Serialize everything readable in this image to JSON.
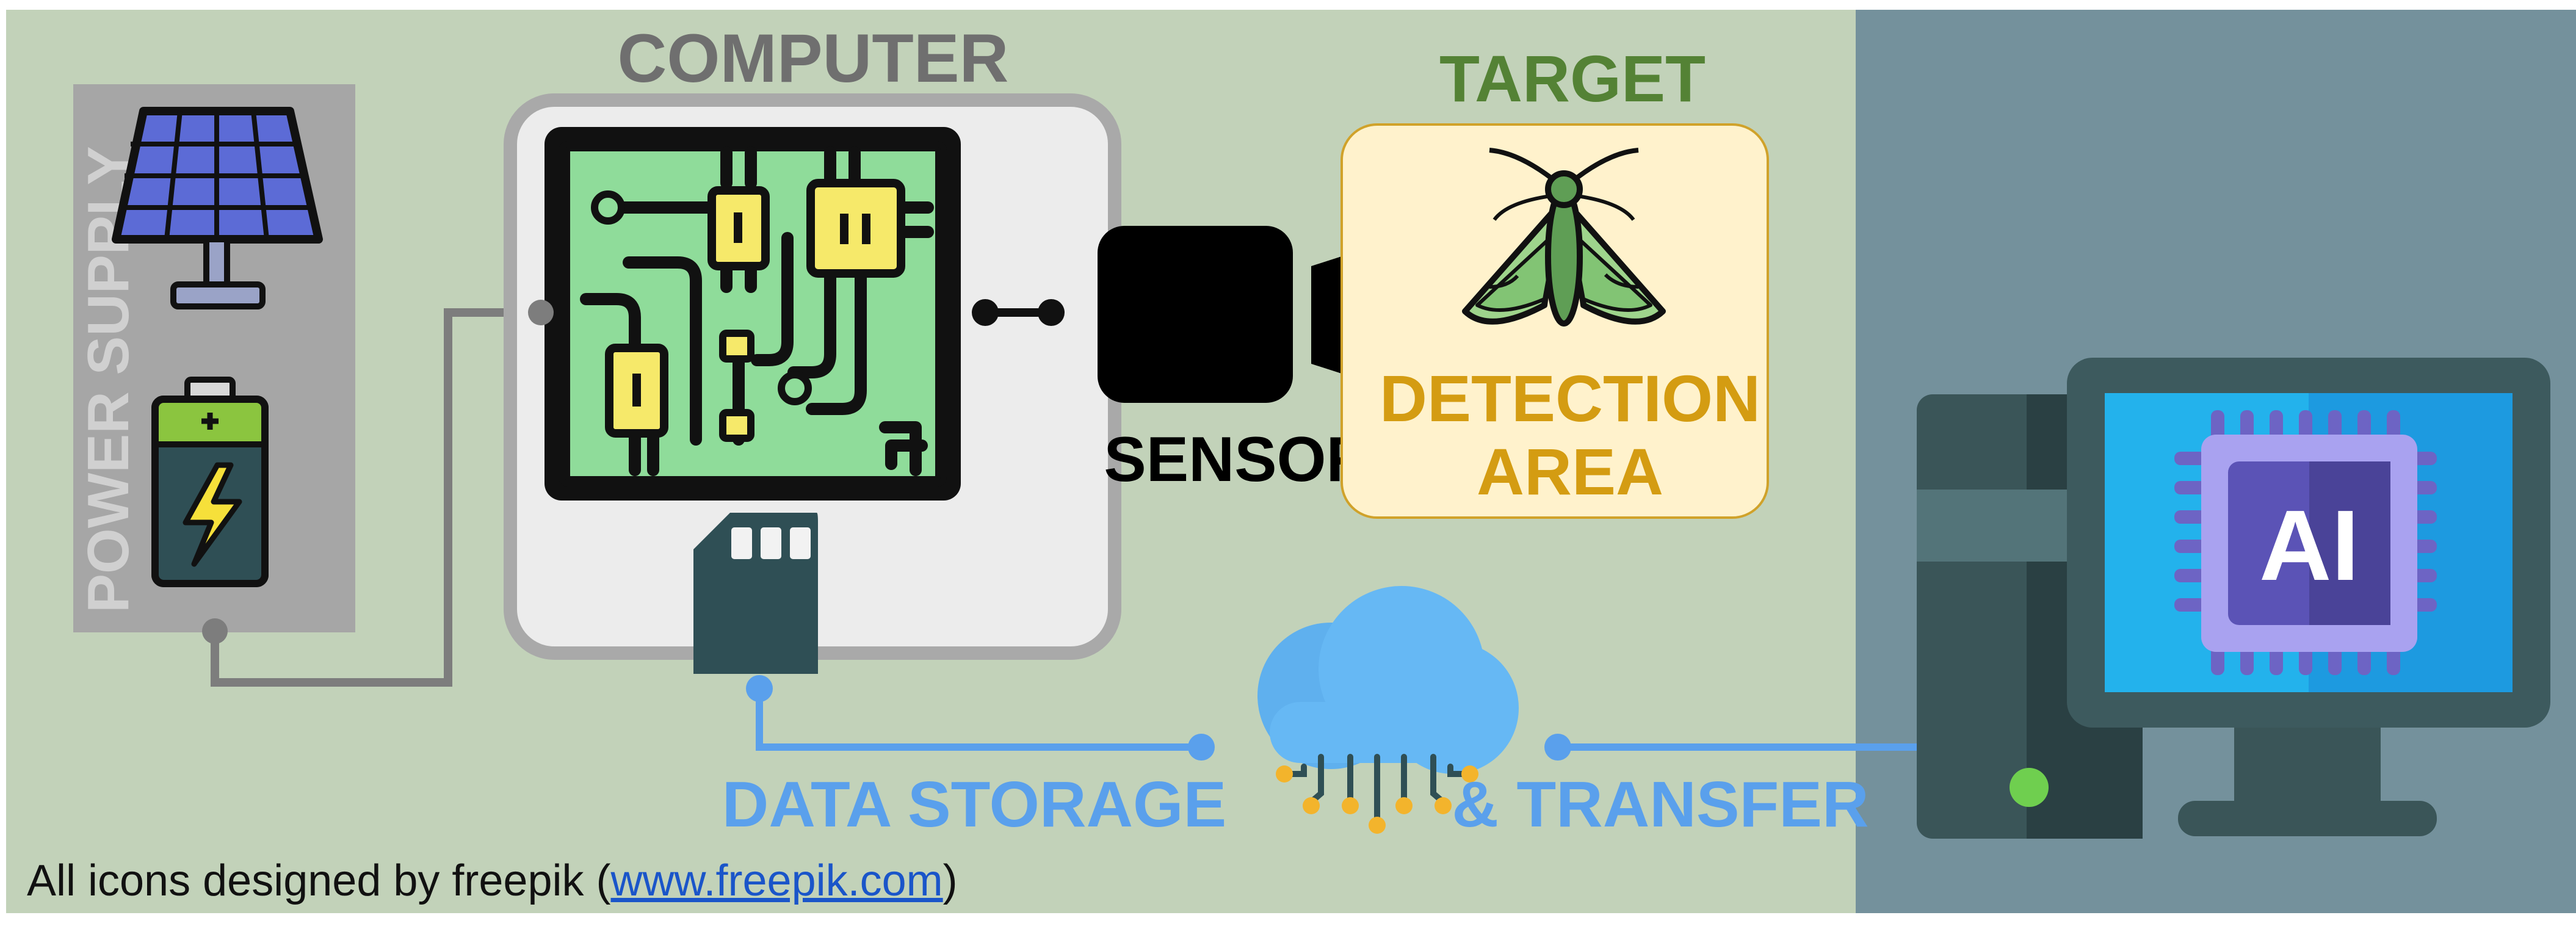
{
  "labels": {
    "computer": "COMPUTER",
    "target": "TARGET",
    "power_supply": "POWER SUPPLY",
    "sensor": "SENSOR",
    "detection_line1": "DETECTION",
    "detection_line2": "AREA",
    "data_storage": "DATA STORAGE",
    "transfer": "& TRANSFER",
    "ai": "AI"
  },
  "credit": {
    "prefix": "All icons designed by freepik (",
    "link": "www.freepik.com",
    "suffix": ")"
  },
  "colors": {
    "panel_left": "#c2d2b9",
    "panel_right": "#74919c",
    "computer_label": "#6f6f6f",
    "target_label": "#548235",
    "detection_label": "#d49c12",
    "data_label": "#5aa0ec",
    "power_label": "#d0d0d0"
  },
  "icons": [
    "solar-panel-icon",
    "battery-icon",
    "circuit-board-icon",
    "sd-card-icon",
    "camera-sensor-icon",
    "moth-icon",
    "cloud-icon",
    "ai-workstation-icon"
  ]
}
